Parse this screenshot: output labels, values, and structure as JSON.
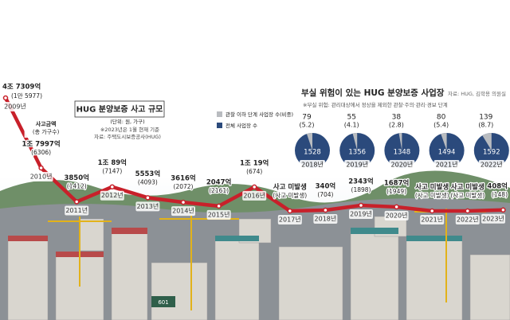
{
  "chart_data": [
    {
      "type": "line",
      "title": "HUG 분양보증 사고 규모",
      "subtitle": "(단위: 원, 가구)",
      "notes": [
        "※2023년은 1월 현재 기준",
        "자료: 주택도시보증공사(HUG)"
      ],
      "categories": [
        "2009년",
        "2010년",
        "2011년",
        "2012년",
        "2013년",
        "2014년",
        "2015년",
        "2016년",
        "2017년",
        "2018년",
        "2019년",
        "2020년",
        "2021년",
        "2022년",
        "2023년"
      ],
      "series": [
        {
          "name": "사고금액",
          "color": "#c8202a",
          "values": [
            47309,
            17997,
            3850,
            10089,
            5553,
            3616,
            2047,
            10019,
            0,
            340,
            2343,
            1687,
            0,
            0,
            408
          ],
          "value_labels": [
            "4조 7309억",
            "1조 7997억",
            "3850억",
            "1조 89억",
            "5553억",
            "3616억",
            "2047억",
            "1조 19억",
            "사고 미발생",
            "340억",
            "2343억",
            "1687억",
            "사고 미발생",
            "사고 미발생",
            "408억"
          ]
        },
        {
          "name": "(총 가구수)",
          "values": [
            15977,
            6306,
            1412,
            7147,
            4093,
            2072,
            2161,
            674,
            null,
            704,
            1898,
            1949,
            null,
            null,
            148
          ],
          "value_labels": [
            "(1만 5977)",
            "(6306)",
            "(1412)",
            "(7147)",
            "(4093)",
            "(2072)",
            "(2161)",
            "(674)",
            "(사고 미발생)",
            "(704)",
            "(1898)",
            "(1949)",
            "(사고 미발생)",
            "(사고 미발생)",
            "(148)"
          ]
        }
      ],
      "photo_text": "601"
    },
    {
      "type": "pie",
      "title": "부실 위험이 있는 HUG 분양보증 사업장",
      "source": "자료: HUG, 김학용 의원실",
      "note": "※부실 위험: 관리대상에서 정상을 제외한 관찰·주의·관리·경보 단계",
      "categories": [
        "2018년",
        "2019년",
        "2020년",
        "2021년",
        "2022년"
      ],
      "series": [
        {
          "name": "관찰 이하 단계 사업장 수(비중)",
          "color": "#b9bcc0",
          "values": [
            79,
            55,
            38,
            80,
            139
          ],
          "shares": [
            5.2,
            4.1,
            2.8,
            5.4,
            8.7
          ],
          "share_labels": [
            "(5.2)",
            "(4.1)",
            "(2.8)",
            "(5.4)",
            "(8.7)"
          ]
        },
        {
          "name": "전체 사업장 수",
          "color": "#2b4a7c",
          "values": [
            1528,
            1356,
            1348,
            1494,
            1592
          ]
        }
      ]
    }
  ]
}
